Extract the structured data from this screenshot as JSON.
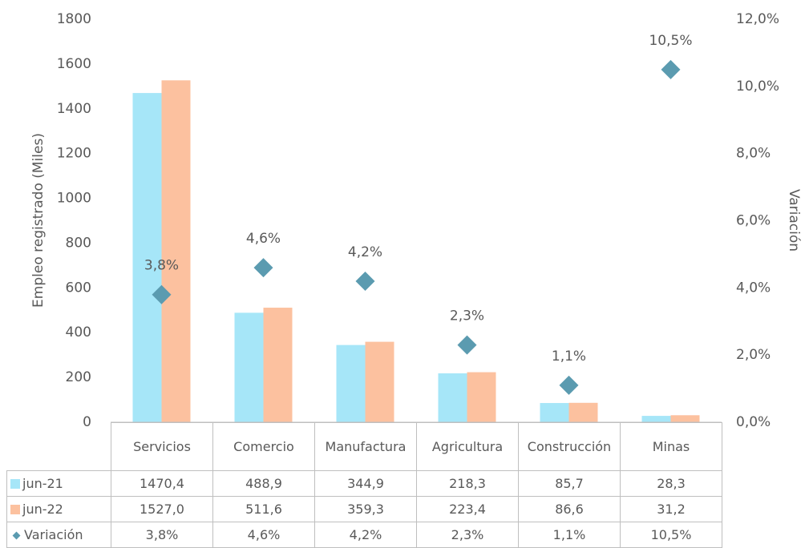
{
  "chart_data": {
    "type": "bar",
    "categories": [
      "Servicios",
      "Comercio",
      "Manufactura",
      "Agricultura",
      "Construcción",
      "Minas"
    ],
    "series": [
      {
        "name": "jun-21",
        "color": "#a6e6f8",
        "values": [
          1470.4,
          488.9,
          344.9,
          218.3,
          85.7,
          28.3
        ],
        "value_labels": [
          "1470,4",
          "488,9",
          "344,9",
          "218,3",
          "85,7",
          "28,3"
        ]
      },
      {
        "name": "jun-22",
        "color": "#fcc19f",
        "values": [
          1527.0,
          511.6,
          359.3,
          223.4,
          86.6,
          31.2
        ],
        "value_labels": [
          "1527,0",
          "511,6",
          "359,3",
          "223,4",
          "86,6",
          "31,2"
        ]
      },
      {
        "name": "Variación",
        "type": "scatter",
        "axis": "y2",
        "color": "#5b9bb0",
        "values": [
          3.8,
          4.6,
          4.2,
          2.3,
          1.1,
          10.5
        ],
        "value_labels": [
          "3,8%",
          "4,6%",
          "4,2%",
          "2,3%",
          "1,1%",
          "10,5%"
        ]
      }
    ],
    "ylabel": "Empleo registrado (Miles)",
    "y2label": "Variación",
    "ylim": [
      0,
      1800
    ],
    "yticks": [
      0,
      200,
      400,
      600,
      800,
      1000,
      1200,
      1400,
      1600,
      1800
    ],
    "y2lim": [
      0,
      12
    ],
    "y2ticks": [
      {
        "value": 0,
        "label": "0,0%"
      },
      {
        "value": 2,
        "label": "2,0%"
      },
      {
        "value": 4,
        "label": "4,0%"
      },
      {
        "value": 6,
        "label": "6,0%"
      },
      {
        "value": 8,
        "label": "8,0%"
      },
      {
        "value": 10,
        "label": "10,0%"
      },
      {
        "value": 12,
        "label": "12,0%"
      }
    ],
    "grid": false
  }
}
